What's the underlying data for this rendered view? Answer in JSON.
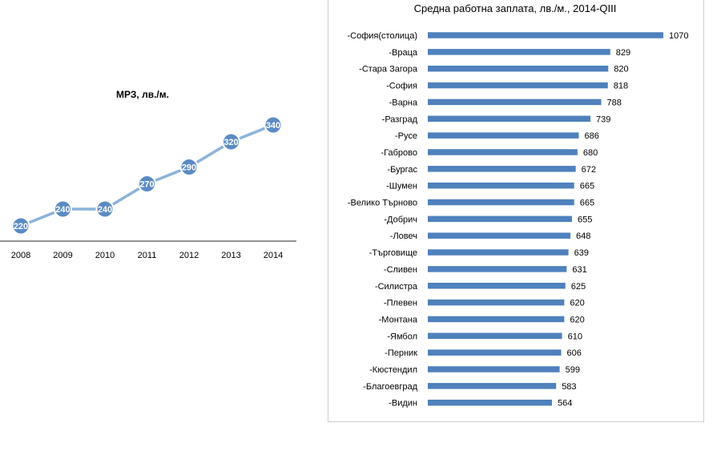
{
  "chart_data": [
    {
      "type": "line",
      "title": "МРЗ, лв./м.",
      "x": [
        "2008",
        "2009",
        "2010",
        "2011",
        "2012",
        "2013",
        "2014"
      ],
      "values": [
        220,
        240,
        240,
        270,
        290,
        320,
        340
      ],
      "data_labels": [
        "220",
        "240",
        "240",
        "270",
        "290",
        "320",
        "340"
      ],
      "colors": {
        "line": "#8CB3DA",
        "marker": "#5B8BC4",
        "label_text": "#ffffff"
      },
      "grid": false
    },
    {
      "type": "bar",
      "orientation": "horizontal",
      "title": "Средна работна заплата, лв./м., 2014-QIII",
      "categories": [
        "-София(столица)",
        "-Враца",
        "-Стара Загора",
        "-София",
        "-Варна",
        "-Разград",
        "-Русе",
        "-Габрово",
        "-Бургас",
        "-Шумен",
        "-Велико Търново",
        "-Добрич",
        "-Ловеч",
        "-Търговище",
        "-Сливен",
        "-Силистра",
        "-Плевен",
        "-Монтана",
        "-Ямбол",
        "-Перник",
        "-Кюстендил",
        "-Благоевград",
        "-Видин"
      ],
      "values": [
        1070,
        829,
        820,
        818,
        788,
        739,
        686,
        680,
        672,
        665,
        665,
        655,
        648,
        639,
        631,
        625,
        620,
        620,
        610,
        606,
        599,
        583,
        564
      ],
      "data_labels": [
        "1070",
        "829",
        "820",
        "818",
        "788",
        "739",
        "686",
        "680",
        "672",
        "665",
        "665",
        "655",
        "648",
        "639",
        "631",
        "625",
        "620",
        "620",
        "610",
        "606",
        "599",
        "583",
        "564"
      ],
      "xlim": [
        0,
        1070
      ],
      "colors": {
        "bar": "#4F81BD"
      },
      "grid": false
    }
  ]
}
